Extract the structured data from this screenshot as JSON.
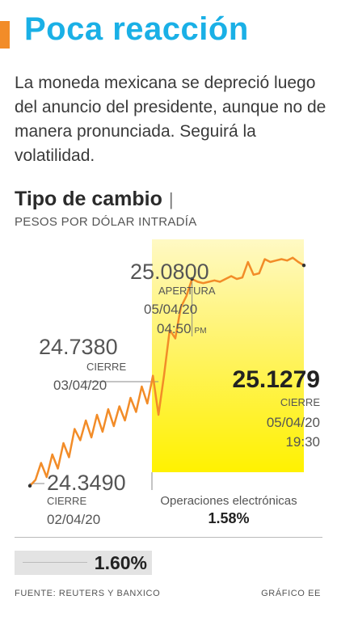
{
  "header": {
    "title": "Poca reacción",
    "accent_color": "#f28c28",
    "title_color": "#1ab0e6"
  },
  "intro_text": "La moneda mexicana se depreció luego del anuncio del presidente, aunque no de manera pronunciada. Seguirá la volatilidad.",
  "chart_title": "Tipo de cambio",
  "chart_title_pipe": "|",
  "chart_units": "PESOS POR DÓLAR INTRADÍA",
  "annotations": {
    "close_0204": {
      "value": "24.3490",
      "label": "CIERRE",
      "date": "02/04/20"
    },
    "close_0304": {
      "value": "24.7380",
      "label": "CIERRE",
      "date": "03/04/20"
    },
    "open_0504": {
      "value": "25.0800",
      "label": "APERTURA",
      "date": "05/04/20",
      "time": "04:50",
      "time_suffix": "PM"
    },
    "close_0504": {
      "value": "25.1279",
      "label": "CIERRE",
      "date": "05/04/20",
      "time": "19:30"
    },
    "electronic": {
      "label": "Operaciones electrónicas",
      "pct": "1.58%"
    }
  },
  "bottom_pct": "1.60%",
  "footer": {
    "source": "FUENTE: REUTERS Y BANXICO",
    "credit": "GRÁFICO EE"
  },
  "chart_data": {
    "type": "line",
    "y": [
      24.349,
      24.37,
      24.43,
      24.38,
      24.46,
      24.41,
      24.5,
      24.45,
      24.55,
      24.51,
      24.58,
      24.52,
      24.6,
      24.54,
      24.62,
      24.56,
      24.63,
      24.58,
      24.66,
      24.61,
      24.7,
      24.64,
      24.738,
      24.6,
      24.74,
      24.9,
      24.87,
      24.98,
      25.02,
      25.08,
      25.07,
      25.065,
      25.07,
      25.075,
      25.07,
      25.08,
      25.09,
      25.08,
      25.085,
      25.14,
      25.095,
      25.1,
      25.15,
      25.14,
      25.145,
      25.15,
      25.145,
      25.155,
      25.14,
      25.1279
    ],
    "electronic_start_index": 24,
    "ylim": [
      24.3,
      25.2
    ],
    "highlight_color": "#fff200",
    "line_color": "#f28c28"
  }
}
